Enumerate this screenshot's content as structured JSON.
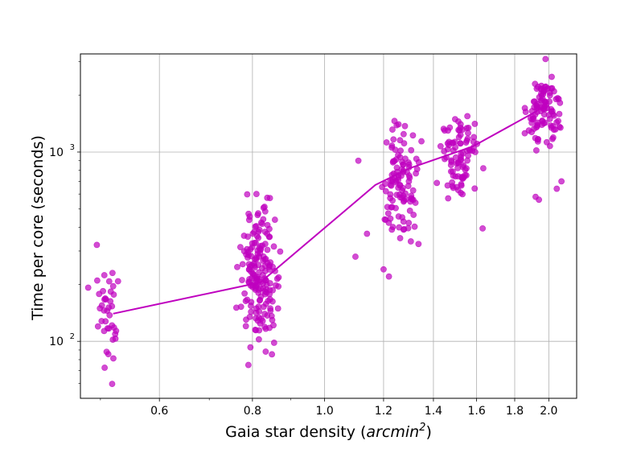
{
  "chart_data": {
    "type": "scatter",
    "title": "",
    "xlabel_prefix": "Gaia star density (",
    "xlabel_math_base": "arcmin",
    "xlabel_math_exp": "2",
    "xlabel_suffix": ")",
    "ylabel": "Time per core (seconds)",
    "x_scale": "log",
    "y_scale": "log",
    "xlim": [
      0.47,
      2.18
    ],
    "ylim": [
      50,
      3300
    ],
    "grid": true,
    "legend": "none",
    "x_ticks": [
      {
        "value": 0.6,
        "label": "0.6"
      },
      {
        "value": 0.8,
        "label": "0.8"
      },
      {
        "value": 1.0,
        "label": "1.0"
      },
      {
        "value": 1.2,
        "label": "1.2"
      },
      {
        "value": 1.4,
        "label": "1.4"
      },
      {
        "value": 1.6,
        "label": "1.6"
      },
      {
        "value": 1.8,
        "label": "1.8"
      },
      {
        "value": 2.0,
        "label": "2.0"
      }
    ],
    "x_minor_ticks": [
      0.5,
      0.7,
      0.9
    ],
    "y_ticks": [
      {
        "value": 100,
        "label_base": "10",
        "label_exp": "2"
      },
      {
        "value": 1000,
        "label_base": "10",
        "label_exp": "3"
      }
    ],
    "y_minor_ticks": [
      60,
      70,
      80,
      90,
      200,
      300,
      400,
      500,
      600,
      700,
      800,
      900,
      2000,
      3000
    ],
    "colors": {
      "marker": "#bf00bf",
      "line": "#bf00bf",
      "grid": "#b0b0b0"
    },
    "series": [
      {
        "kind": "points",
        "clusters": [
          {
            "x": 0.51,
            "x_spread": 0.012,
            "y_log_center": 2.13,
            "y_log_spread": 0.22,
            "count": 40
          },
          {
            "x": 0.82,
            "x_spread": 0.025,
            "y_log_center": 2.35,
            "y_log_spread": 0.22,
            "count": 180
          },
          {
            "x": 1.26,
            "x_spread": 0.04,
            "y_log_center": 2.82,
            "y_log_spread": 0.2,
            "count": 110
          },
          {
            "x": 1.52,
            "x_spread": 0.05,
            "y_log_center": 2.97,
            "y_log_spread": 0.15,
            "count": 90
          },
          {
            "x": 1.97,
            "x_spread": 0.05,
            "y_log_center": 3.22,
            "y_log_spread": 0.12,
            "count": 100
          }
        ],
        "outliers": [
          {
            "x": 0.79,
            "y": 75
          },
          {
            "x": 0.81,
            "y": 600
          },
          {
            "x": 1.1,
            "y": 280
          },
          {
            "x": 1.14,
            "y": 370
          },
          {
            "x": 1.2,
            "y": 240
          },
          {
            "x": 1.22,
            "y": 220
          },
          {
            "x": 1.63,
            "y": 395
          },
          {
            "x": 1.92,
            "y": 580
          },
          {
            "x": 1.94,
            "y": 560
          },
          {
            "x": 2.05,
            "y": 640
          },
          {
            "x": 2.08,
            "y": 700
          },
          {
            "x": 1.98,
            "y": 3100
          },
          {
            "x": 1.11,
            "y": 900
          }
        ]
      },
      {
        "kind": "line",
        "x": [
          0.52,
          0.82,
          1.17,
          1.3,
          1.58,
          1.93
        ],
        "y": [
          140,
          205,
          670,
          820,
          1070,
          1650
        ]
      }
    ]
  }
}
